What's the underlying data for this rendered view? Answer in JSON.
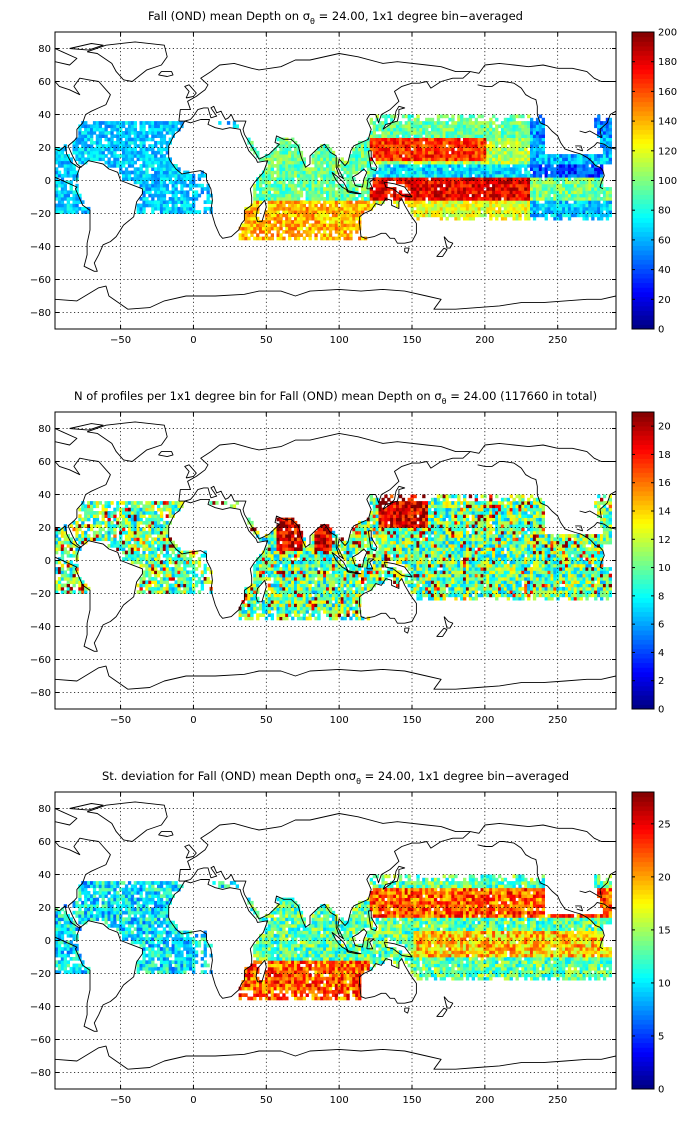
{
  "panels": [
    {
      "title_pre": "Fall (OND) mean Depth on ",
      "title_post": " = 24.00, 1x1 degree bin−averaged",
      "colorbar": {
        "min": 0,
        "max": 200,
        "ticks": [
          "0",
          "20",
          "40",
          "60",
          "80",
          "100",
          "120",
          "140",
          "160",
          "180",
          "200"
        ]
      },
      "field": "depth"
    },
    {
      "title_pre": "N of profiles per 1x1 degree bin for Fall (OND) mean Depth on ",
      "title_post": " = 24.00 (117660 in total)",
      "colorbar": {
        "min": 0,
        "max": 21,
        "ticks": [
          "0",
          "2",
          "4",
          "6",
          "8",
          "10",
          "12",
          "14",
          "16",
          "18",
          "20"
        ]
      },
      "field": "count"
    },
    {
      "title_pre": "St. deviation for Fall (OND) mean Depth on",
      "title_post": " = 24.00, 1x1 degree bin−averaged",
      "colorbar": {
        "min": 0,
        "max": 28,
        "ticks": [
          "0",
          "5",
          "10",
          "15",
          "20",
          "25"
        ]
      },
      "field": "std"
    }
  ],
  "sigma_symbol": "σ",
  "sigma_subscript": "θ",
  "x_ticks": [
    "-50",
    "0",
    "50",
    "100",
    "150",
    "200",
    "250"
  ],
  "y_ticks": [
    "80",
    "60",
    "40",
    "20",
    "0",
    "-20",
    "-40",
    "-60",
    "-80"
  ],
  "chart_data": [
    {
      "type": "heatmap",
      "title": "Fall (OND) mean Depth on σθ = 24.00, 1x1 degree bin−averaged",
      "xlim": [
        -95,
        290
      ],
      "ylim": [
        -90,
        90
      ],
      "x_ticks": [
        -50,
        0,
        50,
        100,
        150,
        200,
        250
      ],
      "y_ticks": [
        -80,
        -60,
        -40,
        -20,
        0,
        20,
        40,
        60,
        80
      ],
      "colormap": "jet",
      "clim": [
        0,
        200
      ],
      "grid": true,
      "features": [
        {
          "region": "western tropical Pacific",
          "lon": [
            140,
            170
          ],
          "lat": [
            10,
            25
          ],
          "value": 170
        },
        {
          "region": "equatorial Pacific south band",
          "lon": [
            150,
            230
          ],
          "lat": [
            -10,
            0
          ],
          "value": 180
        },
        {
          "region": "eastern equatorial Pacific",
          "lon": [
            230,
            270
          ],
          "lat": [
            -5,
            10
          ],
          "value": 50
        },
        {
          "region": "Indian Ocean subtropics",
          "lon": [
            40,
            110
          ],
          "lat": [
            -30,
            -15
          ],
          "value": 140
        },
        {
          "region": "tropical Atlantic",
          "lon": [
            -60,
            10
          ],
          "lat": [
            -15,
            20
          ],
          "value": 70
        }
      ]
    },
    {
      "type": "heatmap",
      "title": "N of profiles per 1x1 degree bin for Fall (OND) mean Depth on σθ = 24.00 (117660 in total)",
      "xlim": [
        -95,
        290
      ],
      "ylim": [
        -90,
        90
      ],
      "colormap": "jet",
      "clim": [
        0,
        21
      ],
      "grid": true,
      "total": 117660,
      "features": [
        {
          "region": "Arabian Sea",
          "lon": [
            55,
            75
          ],
          "lat": [
            5,
            25
          ],
          "value": 20
        },
        {
          "region": "Bay of Bengal",
          "lon": [
            82,
            95
          ],
          "lat": [
            5,
            20
          ],
          "value": 20
        },
        {
          "region": "Kuroshio / NW Pacific",
          "lon": [
            125,
            160
          ],
          "lat": [
            20,
            40
          ],
          "value": 20
        },
        {
          "region": "open ocean typical",
          "lon": [
            -60,
            270
          ],
          "lat": [
            -30,
            30
          ],
          "value": 7
        }
      ]
    },
    {
      "type": "heatmap",
      "title": "St. deviation for Fall (OND) mean Depth onσθ = 24.00, 1x1 degree bin−averaged",
      "xlim": [
        -95,
        290
      ],
      "ylim": [
        -90,
        90
      ],
      "colormap": "jet",
      "clim": [
        0,
        28
      ],
      "grid": true,
      "features": [
        {
          "region": "subtropical North Pacific",
          "lon": [
            125,
            240
          ],
          "lat": [
            15,
            30
          ],
          "value": 22
        },
        {
          "region": "southern Indian Ocean",
          "lon": [
            40,
            110
          ],
          "lat": [
            -35,
            -15
          ],
          "value": 22
        },
        {
          "region": "equatorial Pacific",
          "lon": [
            150,
            260
          ],
          "lat": [
            -10,
            5
          ],
          "value": 18
        },
        {
          "region": "Atlantic",
          "lon": [
            -60,
            10
          ],
          "lat": [
            -20,
            20
          ],
          "value": 10
        }
      ]
    }
  ]
}
